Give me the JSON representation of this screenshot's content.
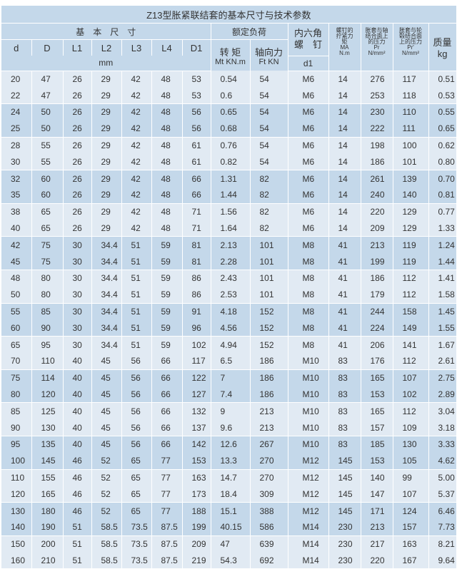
{
  "title": "Z13型胀紧联结套的基本尺寸与技术参数",
  "headers": {
    "basic_dims": "基　本　尺　寸",
    "rated_load": "额定负荷",
    "screw": "内六角\n螺　钉",
    "torque_screw": "螺钉的拧紧力矩",
    "torque_screw_unit": "MA N.m",
    "pr": "胀套与轴结合面上的压力",
    "pr_unit": "Pr N/mm²",
    "pr2": "胀套与轮毂结合面上的压力",
    "pr2_unit": "Pr' N/mm²",
    "mass": "质量",
    "mass_unit": "kg",
    "cols": [
      "d",
      "D",
      "L1",
      "L2",
      "L3",
      "L4",
      "D1"
    ],
    "mm": "mm",
    "mt": "转 矩",
    "mt_unit": "Mt KN.m",
    "ft": "轴向力",
    "ft_unit": "Ft KN",
    "d1": "d1"
  },
  "rows": [
    [
      "20",
      "47",
      "26",
      "29",
      "42",
      "48",
      "53",
      "0.54",
      "54",
      "M6",
      "14",
      "276",
      "117",
      "0.51"
    ],
    [
      "22",
      "47",
      "26",
      "29",
      "42",
      "48",
      "53",
      "0.6",
      "54",
      "M6",
      "14",
      "253",
      "118",
      "0.53"
    ],
    [
      "24",
      "50",
      "26",
      "29",
      "42",
      "48",
      "56",
      "0.65",
      "54",
      "M6",
      "14",
      "230",
      "110",
      "0.55"
    ],
    [
      "25",
      "50",
      "26",
      "29",
      "42",
      "48",
      "56",
      "0.68",
      "54",
      "M6",
      "14",
      "222",
      "111",
      "0.65"
    ],
    [
      "28",
      "55",
      "26",
      "29",
      "42",
      "48",
      "61",
      "0.76",
      "54",
      "M6",
      "14",
      "198",
      "100",
      "0.62"
    ],
    [
      "30",
      "55",
      "26",
      "29",
      "42",
      "48",
      "61",
      "0.82",
      "54",
      "M6",
      "14",
      "186",
      "101",
      "0.80"
    ],
    [
      "32",
      "60",
      "26",
      "29",
      "42",
      "48",
      "66",
      "1.31",
      "82",
      "M6",
      "14",
      "261",
      "139",
      "0.70"
    ],
    [
      "35",
      "60",
      "26",
      "29",
      "42",
      "48",
      "66",
      "1.44",
      "82",
      "M6",
      "14",
      "240",
      "140",
      "0.81"
    ],
    [
      "38",
      "65",
      "26",
      "29",
      "42",
      "48",
      "71",
      "1.56",
      "82",
      "M6",
      "14",
      "220",
      "129",
      "0.77"
    ],
    [
      "40",
      "65",
      "26",
      "29",
      "42",
      "48",
      "71",
      "1.64",
      "82",
      "M6",
      "14",
      "209",
      "129",
      "1.33"
    ],
    [
      "42",
      "75",
      "30",
      "34.4",
      "51",
      "59",
      "81",
      "2.13",
      "101",
      "M8",
      "41",
      "213",
      "119",
      "1.24"
    ],
    [
      "45",
      "75",
      "30",
      "34.4",
      "51",
      "59",
      "81",
      "2.28",
      "101",
      "M8",
      "41",
      "199",
      "119",
      "1.44"
    ],
    [
      "48",
      "80",
      "30",
      "34.4",
      "51",
      "59",
      "86",
      "2.43",
      "101",
      "M8",
      "41",
      "186",
      "112",
      "1.41"
    ],
    [
      "50",
      "80",
      "30",
      "34.4",
      "51",
      "59",
      "86",
      "2.53",
      "101",
      "M8",
      "41",
      "179",
      "112",
      "1.58"
    ],
    [
      "55",
      "85",
      "30",
      "34.4",
      "51",
      "59",
      "91",
      "4.18",
      "152",
      "M8",
      "41",
      "244",
      "158",
      "1.45"
    ],
    [
      "60",
      "90",
      "30",
      "34.4",
      "51",
      "59",
      "96",
      "4.56",
      "152",
      "M8",
      "41",
      "224",
      "149",
      "1.55"
    ],
    [
      "65",
      "95",
      "30",
      "34.4",
      "51",
      "59",
      "102",
      "4.94",
      "152",
      "M8",
      "41",
      "206",
      "141",
      "1.67"
    ],
    [
      "70",
      "110",
      "40",
      "45",
      "56",
      "66",
      "117",
      "6.5",
      "186",
      "M10",
      "83",
      "176",
      "112",
      "2.61"
    ],
    [
      "75",
      "114",
      "40",
      "45",
      "56",
      "66",
      "122",
      "7",
      "186",
      "M10",
      "83",
      "165",
      "107",
      "2.75"
    ],
    [
      "80",
      "120",
      "40",
      "45",
      "56",
      "66",
      "127",
      "7.4",
      "186",
      "M10",
      "83",
      "153",
      "102",
      "2.89"
    ],
    [
      "85",
      "125",
      "40",
      "45",
      "56",
      "66",
      "132",
      "9",
      "213",
      "M10",
      "83",
      "165",
      "112",
      "3.04"
    ],
    [
      "90",
      "130",
      "40",
      "45",
      "56",
      "66",
      "137",
      "9.6",
      "213",
      "M10",
      "83",
      "157",
      "109",
      "3.18"
    ],
    [
      "95",
      "135",
      "40",
      "45",
      "56",
      "66",
      "142",
      "12.6",
      "267",
      "M10",
      "83",
      "185",
      "130",
      "3.33"
    ],
    [
      "100",
      "145",
      "46",
      "52",
      "65",
      "77",
      "153",
      "13.3",
      "270",
      "M12",
      "145",
      "153",
      "105",
      "4.62"
    ],
    [
      "110",
      "155",
      "46",
      "52",
      "65",
      "77",
      "163",
      "14.7",
      "270",
      "M12",
      "145",
      "140",
      "99",
      "5.00"
    ],
    [
      "120",
      "165",
      "46",
      "52",
      "65",
      "77",
      "173",
      "18.4",
      "309",
      "M12",
      "145",
      "147",
      "107",
      "5.37"
    ],
    [
      "130",
      "180",
      "46",
      "52",
      "65",
      "77",
      "188",
      "15.1",
      "388",
      "M12",
      "145",
      "171",
      "124",
      "6.46"
    ],
    [
      "140",
      "190",
      "51",
      "58.5",
      "73.5",
      "87.5",
      "199",
      "40.15",
      "586",
      "M14",
      "230",
      "213",
      "157",
      "7.73"
    ],
    [
      "150",
      "200",
      "51",
      "58.5",
      "73.5",
      "87.5",
      "209",
      "47",
      "639",
      "M14",
      "230",
      "217",
      "163",
      "8.21"
    ],
    [
      "160",
      "210",
      "51",
      "58.5",
      "73.5",
      "87.5",
      "219",
      "54.3",
      "692",
      "M14",
      "230",
      "220",
      "167",
      "9.64"
    ]
  ],
  "colors": {
    "header": "#c4d8ea",
    "band_light": "#e1eaf3",
    "band_dark": "#c4d8ea"
  }
}
